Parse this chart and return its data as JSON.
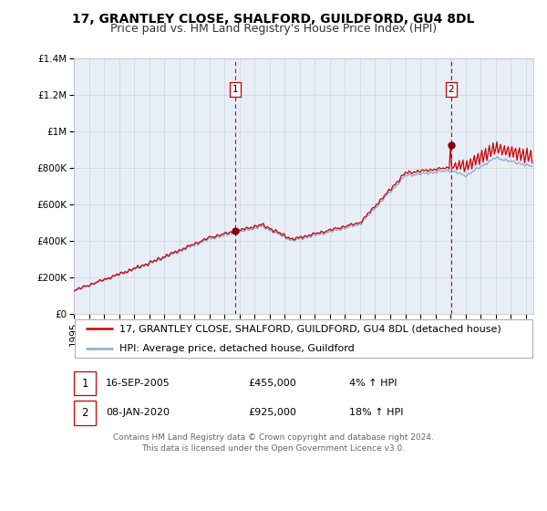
{
  "title": "17, GRANTLEY CLOSE, SHALFORD, GUILDFORD, GU4 8DL",
  "subtitle": "Price paid vs. HM Land Registry's House Price Index (HPI)",
  "ylim": [
    0,
    1400000
  ],
  "yticks": [
    0,
    200000,
    400000,
    600000,
    800000,
    1000000,
    1200000,
    1400000
  ],
  "ytick_labels": [
    "£0",
    "£200K",
    "£400K",
    "£600K",
    "£800K",
    "£1M",
    "£1.2M",
    "£1.4M"
  ],
  "xlim_start": 1995.0,
  "xlim_end": 2025.5,
  "background_color": "#e8eef8",
  "grid_color": "#cccccc",
  "line1_color": "#cc0000",
  "line2_color": "#88aacc",
  "marker_color": "#880000",
  "vline_color": "#cc0000",
  "sale1_x": 2005.71,
  "sale1_y": 455000,
  "sale2_x": 2020.03,
  "sale2_y": 925000,
  "legend_line1": "17, GRANTLEY CLOSE, SHALFORD, GUILDFORD, GU4 8DL (detached house)",
  "legend_line2": "HPI: Average price, detached house, Guildford",
  "annotation1_date": "16-SEP-2005",
  "annotation1_price": "£455,000",
  "annotation1_hpi": "4% ↑ HPI",
  "annotation2_date": "08-JAN-2020",
  "annotation2_price": "£925,000",
  "annotation2_hpi": "18% ↑ HPI",
  "footer": "Contains HM Land Registry data © Crown copyright and database right 2024.\nThis data is licensed under the Open Government Licence v3.0.",
  "title_fontsize": 10,
  "subtitle_fontsize": 9,
  "tick_fontsize": 7.5,
  "legend_fontsize": 8,
  "annotation_fontsize": 8,
  "footer_fontsize": 6.5
}
